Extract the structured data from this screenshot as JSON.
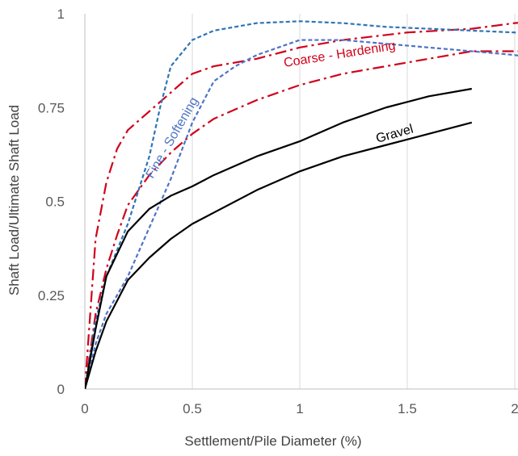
{
  "chart_data": {
    "type": "line",
    "title": "",
    "xlabel": "Settlement/Pile Diameter (%)",
    "ylabel": "Shaft Load/Ultimate Shaft Load",
    "xlim": [
      0,
      2
    ],
    "ylim": [
      0,
      1
    ],
    "x_ticks": [
      "0",
      "0.5",
      "1",
      "1.5",
      "2"
    ],
    "y_ticks": [
      "0",
      "0.25",
      "0.5",
      "0.75",
      "1"
    ],
    "grid": "vertical",
    "legend": "none",
    "annotations": [
      {
        "text": "Coarse - Hardening",
        "color": "#d0021b"
      },
      {
        "text": "Fine - Softening",
        "color": "#4f74c4"
      },
      {
        "text": "Gravel",
        "color": "#000000"
      }
    ],
    "series": [
      {
        "group": "Coarse - Hardening",
        "color": "#d0021b",
        "style": "dash-dot",
        "x": [
          0,
          0.05,
          0.1,
          0.15,
          0.2,
          0.3,
          0.4,
          0.5,
          0.6,
          0.8,
          1.0,
          1.2,
          1.5,
          1.8,
          2.0,
          2.1
        ],
        "y": [
          0,
          0.4,
          0.55,
          0.64,
          0.69,
          0.74,
          0.79,
          0.84,
          0.86,
          0.88,
          0.91,
          0.93,
          0.95,
          0.96,
          0.975,
          0.98
        ]
      },
      {
        "group": "Coarse - Hardening",
        "color": "#d0021b",
        "style": "dash-dot",
        "x": [
          0,
          0.05,
          0.1,
          0.15,
          0.2,
          0.3,
          0.4,
          0.5,
          0.6,
          0.8,
          1.0,
          1.2,
          1.5,
          1.8,
          2.0,
          2.1
        ],
        "y": [
          0,
          0.2,
          0.32,
          0.41,
          0.49,
          0.57,
          0.63,
          0.68,
          0.72,
          0.77,
          0.81,
          0.84,
          0.87,
          0.9,
          0.9,
          0.9
        ]
      },
      {
        "group": "Fine - Softening",
        "color": "#2e75b6",
        "style": "short-dash",
        "x": [
          0,
          0.05,
          0.1,
          0.2,
          0.3,
          0.35,
          0.4,
          0.5,
          0.6,
          0.8,
          1.0,
          1.2,
          1.4,
          1.6,
          1.8,
          2.0,
          2.1
        ],
        "y": [
          0,
          0.18,
          0.3,
          0.44,
          0.62,
          0.75,
          0.86,
          0.93,
          0.955,
          0.975,
          0.98,
          0.975,
          0.965,
          0.96,
          0.955,
          0.95,
          0.95
        ]
      },
      {
        "group": "Fine - Softening",
        "color": "#4f74c4",
        "style": "short-dash",
        "x": [
          0,
          0.05,
          0.1,
          0.2,
          0.3,
          0.4,
          0.5,
          0.6,
          0.7,
          0.8,
          1.0,
          1.2,
          1.4,
          1.6,
          1.8,
          2.0,
          2.1
        ],
        "y": [
          0,
          0.12,
          0.2,
          0.3,
          0.43,
          0.56,
          0.71,
          0.82,
          0.86,
          0.89,
          0.93,
          0.93,
          0.92,
          0.91,
          0.9,
          0.89,
          0.88
        ]
      },
      {
        "group": "Gravel",
        "color": "#000000",
        "style": "solid",
        "x": [
          0,
          0.05,
          0.1,
          0.2,
          0.3,
          0.4,
          0.5,
          0.6,
          0.8,
          1.0,
          1.2,
          1.4,
          1.6,
          1.8
        ],
        "y": [
          0,
          0.16,
          0.3,
          0.42,
          0.48,
          0.515,
          0.54,
          0.57,
          0.62,
          0.66,
          0.71,
          0.75,
          0.78,
          0.8
        ]
      },
      {
        "group": "Gravel",
        "color": "#000000",
        "style": "solid",
        "x": [
          0,
          0.05,
          0.1,
          0.2,
          0.3,
          0.4,
          0.5,
          0.6,
          0.8,
          1.0,
          1.2,
          1.4,
          1.6,
          1.8
        ],
        "y": [
          0,
          0.1,
          0.18,
          0.29,
          0.35,
          0.4,
          0.44,
          0.47,
          0.53,
          0.58,
          0.62,
          0.65,
          0.68,
          0.71
        ]
      }
    ]
  }
}
